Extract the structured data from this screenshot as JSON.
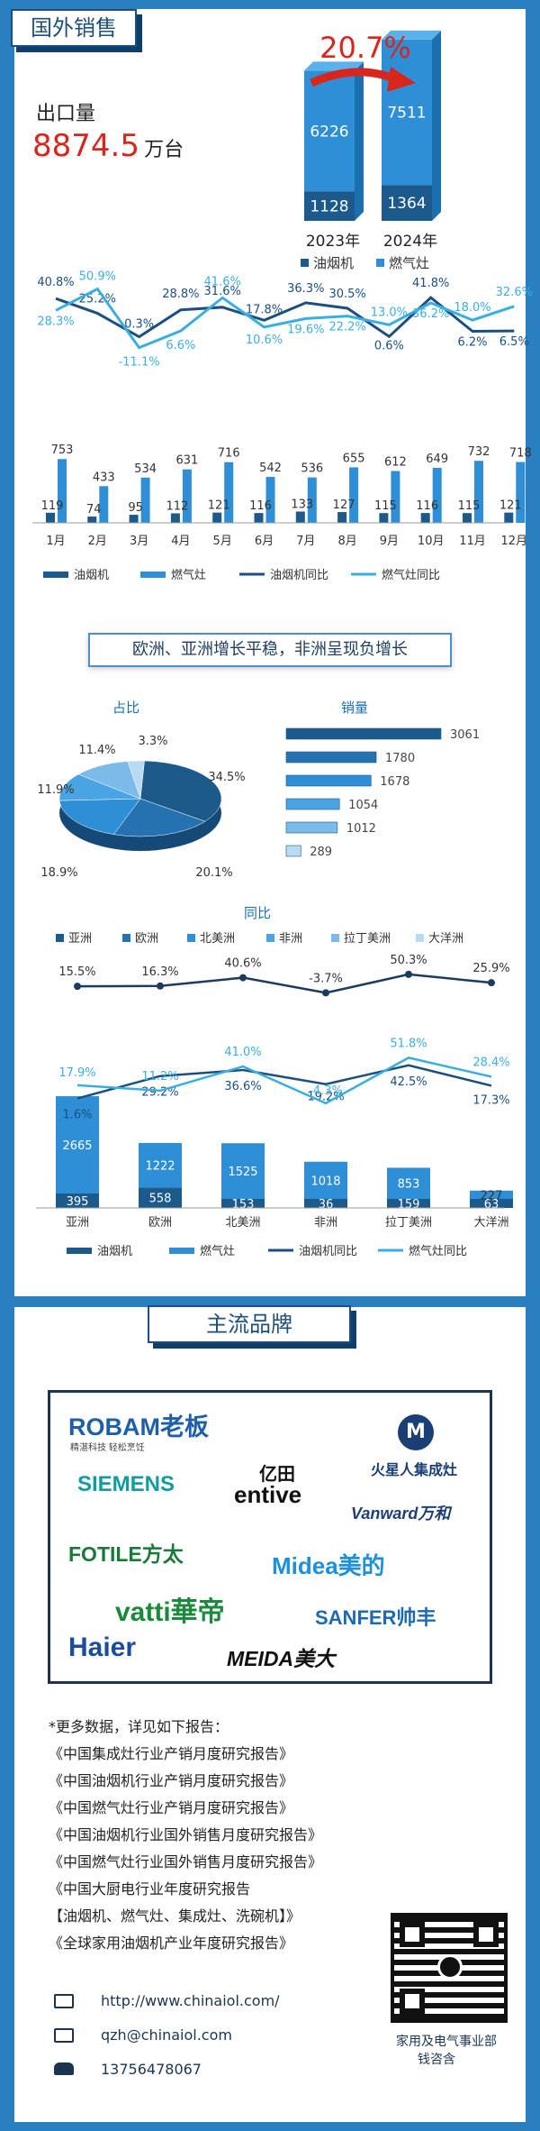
{
  "section1": {
    "title": "国外销售",
    "export_label": "出口量",
    "export_value": "8874.5",
    "export_unit": "万台",
    "growth": "20.7%"
  },
  "colors": {
    "range_hood": "#1c5a8c",
    "gas_stove": "#2e8fd6",
    "range_hood_line": "#1c4f80",
    "gas_stove_line": "#3aaee0",
    "accent": "#d9261c"
  },
  "year_chart": {
    "type": "bar",
    "categories": [
      "2023年",
      "2024年"
    ],
    "series": [
      {
        "name": "油烟机",
        "values": [
          1128,
          1364
        ]
      },
      {
        "name": "燃气灶",
        "values": [
          6226,
          7511
        ]
      }
    ]
  },
  "chart_data": [
    {
      "type": "bar",
      "categories": [
        "1月",
        "2月",
        "3月",
        "4月",
        "5月",
        "6月",
        "7月",
        "8月",
        "9月",
        "10月",
        "11月",
        "12月"
      ],
      "series": [
        {
          "name": "油烟机",
          "values": [
            119,
            74,
            95,
            112,
            121,
            116,
            133,
            127,
            115,
            116,
            115,
            121
          ]
        },
        {
          "name": "燃气灶",
          "values": [
            753,
            433,
            534,
            631,
            716,
            542,
            536,
            655,
            612,
            649,
            732,
            718
          ]
        }
      ],
      "lines": [
        {
          "name": "油烟机同比",
          "values": [
            40.8,
            25.2,
            0.3,
            28.8,
            31.6,
            17.8,
            36.3,
            30.5,
            0.6,
            41.8,
            6.2,
            6.5
          ]
        },
        {
          "name": "燃气灶同比",
          "values": [
            28.3,
            50.9,
            -11.1,
            6.6,
            41.6,
            10.6,
            19.6,
            22.2,
            13.0,
            36.2,
            18.0,
            32.6
          ]
        }
      ]
    },
    {
      "type": "pie",
      "title": "占比",
      "categories": [
        "亚洲",
        "欧洲",
        "北美洲",
        "非洲",
        "拉丁美洲",
        "大洋洲"
      ],
      "values": [
        34.5,
        20.1,
        18.9,
        11.9,
        11.4,
        3.3
      ]
    },
    {
      "type": "bar",
      "title": "销量",
      "categories": [
        "亚洲",
        "欧洲",
        "北美洲",
        "非洲",
        "拉丁美洲",
        "大洋洲"
      ],
      "values": [
        3061,
        1780,
        1678,
        1054,
        1012,
        289
      ]
    },
    {
      "type": "line",
      "title": "同比",
      "categories": [
        "亚洲",
        "欧洲",
        "北美洲",
        "非洲",
        "拉丁美洲",
        "大洋洲"
      ],
      "values": [
        15.5,
        16.3,
        40.6,
        -3.7,
        50.3,
        25.9
      ]
    },
    {
      "type": "bar",
      "categories": [
        "亚洲",
        "欧洲",
        "北美洲",
        "非洲",
        "拉丁美洲",
        "大洋洲"
      ],
      "series": [
        {
          "name": "油烟机",
          "values": [
            395,
            558,
            153,
            36,
            159,
            63
          ]
        },
        {
          "name": "燃气灶",
          "values": [
            2665,
            1222,
            1525,
            1018,
            853,
            227
          ]
        }
      ],
      "lines": [
        {
          "name": "油烟机同比",
          "values": [
            1.6,
            29.2,
            36.6,
            19.2,
            42.5,
            17.3
          ]
        },
        {
          "name": "燃气灶同比",
          "values": [
            17.9,
            11.2,
            41.0,
            -4.3,
            51.8,
            28.4
          ]
        }
      ]
    }
  ],
  "region_banner": "欧洲、亚洲增长平稳，非洲呈现负增长",
  "region_legend": [
    "亚洲",
    "欧洲",
    "北美洲",
    "非洲",
    "拉丁美洲",
    "大洋洲"
  ],
  "region_colors": [
    "#1c5a8c",
    "#2672b0",
    "#2e8fd6",
    "#4aa3e3",
    "#7cbbe9",
    "#b9daf3"
  ],
  "brands": {
    "title": "主流品牌",
    "robam": "ROBAM老板",
    "robam_sub": "精湛科技 轻松烹饪",
    "fire_star": "火星人集成灶",
    "siemens": "SIEMENS",
    "yitian": "亿田",
    "entive": "entive",
    "vanward": "Vanward万和",
    "fotile": "FOTILE方太",
    "midea": "Midea美的",
    "vatti": "vatti華帝",
    "sanfer": "SANFER帅丰",
    "haier": "Haier",
    "meida": "MEIDA美大"
  },
  "reports": {
    "intro": "*更多数据，详见如下报告：",
    "items": [
      "《中国集成灶行业产销月度研究报告》",
      "《中国油烟机行业产销月度研究报告》",
      "《中国燃气灶行业产销月度研究报告》",
      "《中国油烟机行业国外销售月度研究报告》",
      "《中国燃气灶行业国外销售月度研究报告》",
      "《中国大厨电行业年度研究报告",
      "【油烟机、燃气灶、集成灶、洗碗机】》",
      "《全球家用油烟机产业年度研究报告》"
    ]
  },
  "contact": {
    "website": "http://www.chinaiol.com/",
    "email": "qzh@chinaiol.com",
    "phone": "13756478067",
    "dept": "家用及电气事业部",
    "person": "钱咨含"
  }
}
